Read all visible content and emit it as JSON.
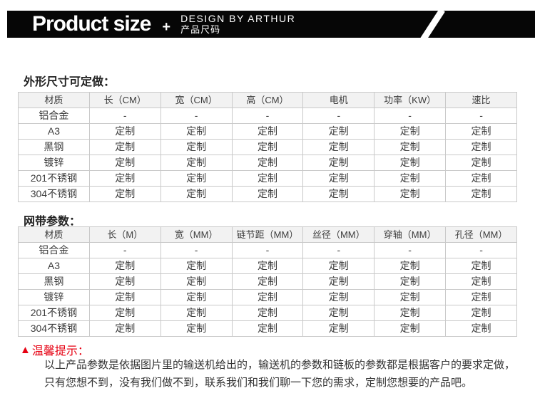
{
  "header": {
    "title": "Product size",
    "plus": "+",
    "subtitle_en": "DESIGN BY ARTHUR",
    "subtitle_cn": "产品尺码"
  },
  "colors": {
    "banner_bg": "#060606",
    "accent_red": "#e60012",
    "table_border": "#c9c9c9",
    "header_row_bg": "#f2f2f2",
    "body_text": "#3d3d3d"
  },
  "section_outer_size": {
    "title": "外形尺寸可定做：",
    "table": {
      "headers": [
        "材质",
        "长（CM）",
        "宽（CM）",
        "高（CM）",
        "电机",
        "功率（KW）",
        "速比"
      ],
      "rows": [
        [
          "铝合金",
          "-",
          "-",
          "-",
          "-",
          "-",
          "-"
        ],
        [
          "A3",
          "定制",
          "定制",
          "定制",
          "定制",
          "定制",
          "定制"
        ],
        [
          "黑钢",
          "定制",
          "定制",
          "定制",
          "定制",
          "定制",
          "定制"
        ],
        [
          "镀锌",
          "定制",
          "定制",
          "定制",
          "定制",
          "定制",
          "定制"
        ],
        [
          "201不锈钢",
          "定制",
          "定制",
          "定制",
          "定制",
          "定制",
          "定制"
        ],
        [
          "304不锈钢",
          "定制",
          "定制",
          "定制",
          "定制",
          "定制",
          "定制"
        ]
      ]
    }
  },
  "section_mesh_belt": {
    "title": "网带参数：",
    "table": {
      "headers": [
        "材质",
        "长（M）",
        "宽（MM）",
        "链节距（MM）",
        "丝径（MM）",
        "穿轴（MM）",
        "孔径（MM）"
      ],
      "rows": [
        [
          "铝合金",
          "-",
          "-",
          "-",
          "-",
          "-",
          "-"
        ],
        [
          "A3",
          "定制",
          "定制",
          "定制",
          "定制",
          "定制",
          "定制"
        ],
        [
          "黑钢",
          "定制",
          "定制",
          "定制",
          "定制",
          "定制",
          "定制"
        ],
        [
          "镀锌",
          "定制",
          "定制",
          "定制",
          "定制",
          "定制",
          "定制"
        ],
        [
          "201不锈钢",
          "定制",
          "定制",
          "定制",
          "定制",
          "定制",
          "定制"
        ],
        [
          "304不锈钢",
          "定制",
          "定制",
          "定制",
          "定制",
          "定制",
          "定制"
        ]
      ]
    }
  },
  "notice": {
    "triangle": "▲",
    "label": "温馨提示：",
    "lines": [
      "以上产品参数是依据图片里的输送机给出的，输送机的参数和链板的参数都是根据客户的要求定做，",
      "只有您想不到，没有我们做不到，联系我们和我们聊一下您的需求，定制您想要的产品吧。"
    ]
  }
}
